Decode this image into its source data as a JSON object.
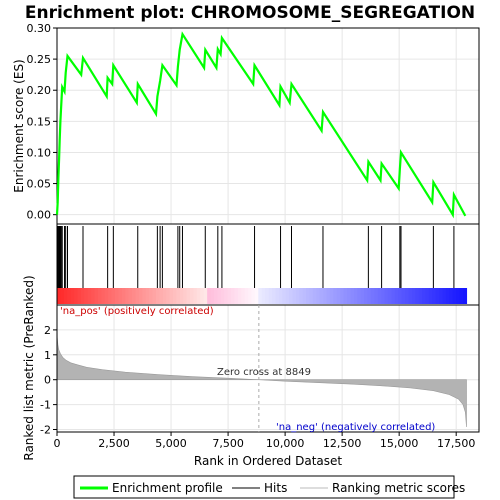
{
  "chart_data": {
    "type": "line",
    "title": "Enrichment plot: CHROMOSOME_SEGREGATION",
    "top_panel": {
      "ylabel": "Enrichment score (ES)",
      "ylim": [
        -0.015,
        0.3
      ],
      "yticks": [
        0.0,
        0.05,
        0.1,
        0.15,
        0.2,
        0.25,
        0.3
      ],
      "ytick_labels": [
        "0.00",
        "0.05",
        "0.10",
        "0.15",
        "0.20",
        "0.25",
        "0.30"
      ],
      "line_color": "#00ff00",
      "es_profile": [
        [
          0,
          0.0
        ],
        [
          30,
          0.02
        ],
        [
          60,
          0.06
        ],
        [
          90,
          0.09
        ],
        [
          120,
          0.12
        ],
        [
          150,
          0.15
        ],
        [
          190,
          0.178
        ],
        [
          230,
          0.205
        ],
        [
          330,
          0.198
        ],
        [
          380,
          0.228
        ],
        [
          460,
          0.255
        ],
        [
          1060,
          0.225
        ],
        [
          1140,
          0.252
        ],
        [
          2180,
          0.19
        ],
        [
          2220,
          0.22
        ],
        [
          2420,
          0.21
        ],
        [
          2470,
          0.24
        ],
        [
          3500,
          0.18
        ],
        [
          3540,
          0.21
        ],
        [
          4340,
          0.162
        ],
        [
          4400,
          0.19
        ],
        [
          4520,
          0.215
        ],
        [
          4620,
          0.24
        ],
        [
          5240,
          0.208
        ],
        [
          5300,
          0.238
        ],
        [
          5380,
          0.265
        ],
        [
          5500,
          0.29
        ],
        [
          6450,
          0.236
        ],
        [
          6500,
          0.265
        ],
        [
          6990,
          0.236
        ],
        [
          7050,
          0.266
        ],
        [
          7170,
          0.258
        ],
        [
          7230,
          0.284
        ],
        [
          8600,
          0.21
        ],
        [
          8660,
          0.24
        ],
        [
          9750,
          0.176
        ],
        [
          9800,
          0.206
        ],
        [
          10200,
          0.18
        ],
        [
          10280,
          0.21
        ],
        [
          11600,
          0.135
        ],
        [
          11660,
          0.165
        ],
        [
          13600,
          0.055
        ],
        [
          13650,
          0.085
        ],
        [
          14180,
          0.055
        ],
        [
          14230,
          0.082
        ],
        [
          14980,
          0.042
        ],
        [
          15030,
          0.072
        ],
        [
          15080,
          0.1
        ],
        [
          16450,
          0.02
        ],
        [
          16500,
          0.052
        ],
        [
          17350,
          0.0
        ],
        [
          17400,
          0.032
        ],
        [
          17900,
          -0.002
        ]
      ]
    },
    "hits_panel": {
      "hit_positions": [
        40,
        70,
        100,
        130,
        160,
        190,
        230,
        330,
        380,
        460,
        1140,
        2220,
        2470,
        3540,
        4400,
        4520,
        4620,
        5300,
        5380,
        5500,
        6500,
        7050,
        7230,
        8660,
        9800,
        10280,
        11660,
        13650,
        14230,
        15030,
        15080,
        16500,
        17400
      ]
    },
    "bottom_panel": {
      "ylabel": "Ranked list metric (PreRanked)",
      "xlabel": "Rank in Ordered Dataset",
      "ylim": [
        -2.1,
        3.0
      ],
      "yticks": [
        -2,
        -1,
        0,
        1,
        2
      ],
      "xlim": [
        0,
        18500
      ],
      "xticks": [
        0,
        2500,
        5000,
        7500,
        10000,
        12500,
        15000,
        17500
      ],
      "xtick_labels": [
        "0",
        "2,500",
        "5,000",
        "7,500",
        "10,000",
        "12,500",
        "15,000",
        "17,500"
      ],
      "metric_curve": [
        [
          0,
          2.9
        ],
        [
          15,
          1.7
        ],
        [
          40,
          1.4
        ],
        [
          80,
          1.2
        ],
        [
          150,
          1.05
        ],
        [
          250,
          0.9
        ],
        [
          400,
          0.78
        ],
        [
          600,
          0.68
        ],
        [
          900,
          0.6
        ],
        [
          1300,
          0.5
        ],
        [
          2000,
          0.4
        ],
        [
          3000,
          0.3
        ],
        [
          4500,
          0.2
        ],
        [
          6000,
          0.12
        ],
        [
          7500,
          0.06
        ],
        [
          8849,
          0.0
        ],
        [
          10000,
          -0.06
        ],
        [
          11500,
          -0.12
        ],
        [
          13000,
          -0.18
        ],
        [
          14500,
          -0.26
        ],
        [
          15500,
          -0.33
        ],
        [
          16500,
          -0.44
        ],
        [
          17200,
          -0.6
        ],
        [
          17600,
          -0.78
        ],
        [
          17800,
          -1.0
        ],
        [
          17900,
          -1.3
        ],
        [
          17950,
          -1.9
        ]
      ],
      "zero_cross_label": "Zero cross at 8849",
      "zero_cross": 8849,
      "pos_label": "'na_pos' (positively correlated)",
      "neg_label": "'na_neg' (negatively correlated)"
    },
    "legend": {
      "placement": "bottom",
      "entries": [
        "Enrichment profile",
        "Hits",
        "Ranking metric scores"
      ]
    }
  }
}
